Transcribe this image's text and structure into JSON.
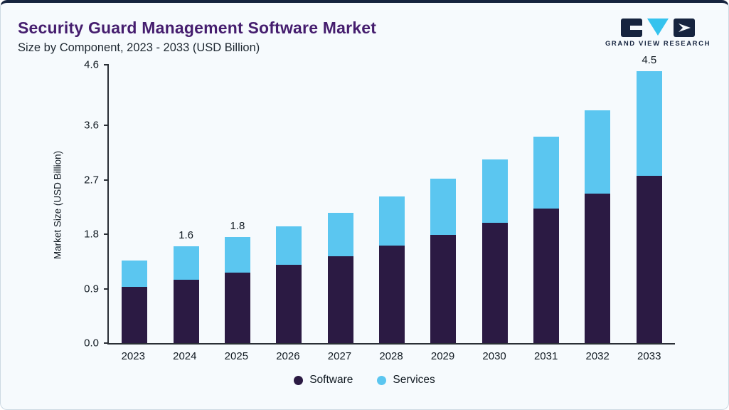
{
  "header": {
    "title": "Security Guard Management Software Market",
    "subtitle": "Size by Component, 2023 - 2033 (USD Billion)",
    "brand": "GRAND VIEW RESEARCH"
  },
  "colors": {
    "software": "#2b1a43",
    "services": "#5bc6f0",
    "title": "#451d6e",
    "accent_line": "#16243f",
    "axis": "#2a2f36"
  },
  "chart_data": {
    "type": "bar",
    "stacked": true,
    "title": "Security Guard Management Software Market Size by Component, 2023 - 2033 (USD Billion)",
    "xlabel": "",
    "ylabel": "Market Size (USD Billion)",
    "categories": [
      "2023",
      "2024",
      "2025",
      "2026",
      "2027",
      "2028",
      "2029",
      "2030",
      "2031",
      "2032",
      "2033"
    ],
    "series": [
      {
        "name": "Software",
        "color": "#2b1a43",
        "values": [
          0.93,
          1.05,
          1.16,
          1.3,
          1.44,
          1.61,
          1.79,
          1.99,
          2.22,
          2.47,
          2.76
        ]
      },
      {
        "name": "Services",
        "color": "#5bc6f0",
        "values": [
          0.43,
          0.55,
          0.59,
          0.63,
          0.71,
          0.81,
          0.93,
          1.05,
          1.19,
          1.38,
          1.74
        ]
      }
    ],
    "totals": [
      1.36,
      1.6,
      1.75,
      1.93,
      2.15,
      2.42,
      2.72,
      3.04,
      3.41,
      3.85,
      4.5
    ],
    "bar_labels": [
      "",
      "1.6",
      "1.8",
      "",
      "",
      "",
      "",
      "",
      "",
      "",
      "4.5"
    ],
    "yticks": [
      0.0,
      0.9,
      1.8,
      2.7,
      3.6,
      4.6
    ],
    "ylim": [
      0,
      4.6
    ],
    "grid": false,
    "legend_position": "bottom",
    "legend": [
      "Software",
      "Services"
    ]
  }
}
